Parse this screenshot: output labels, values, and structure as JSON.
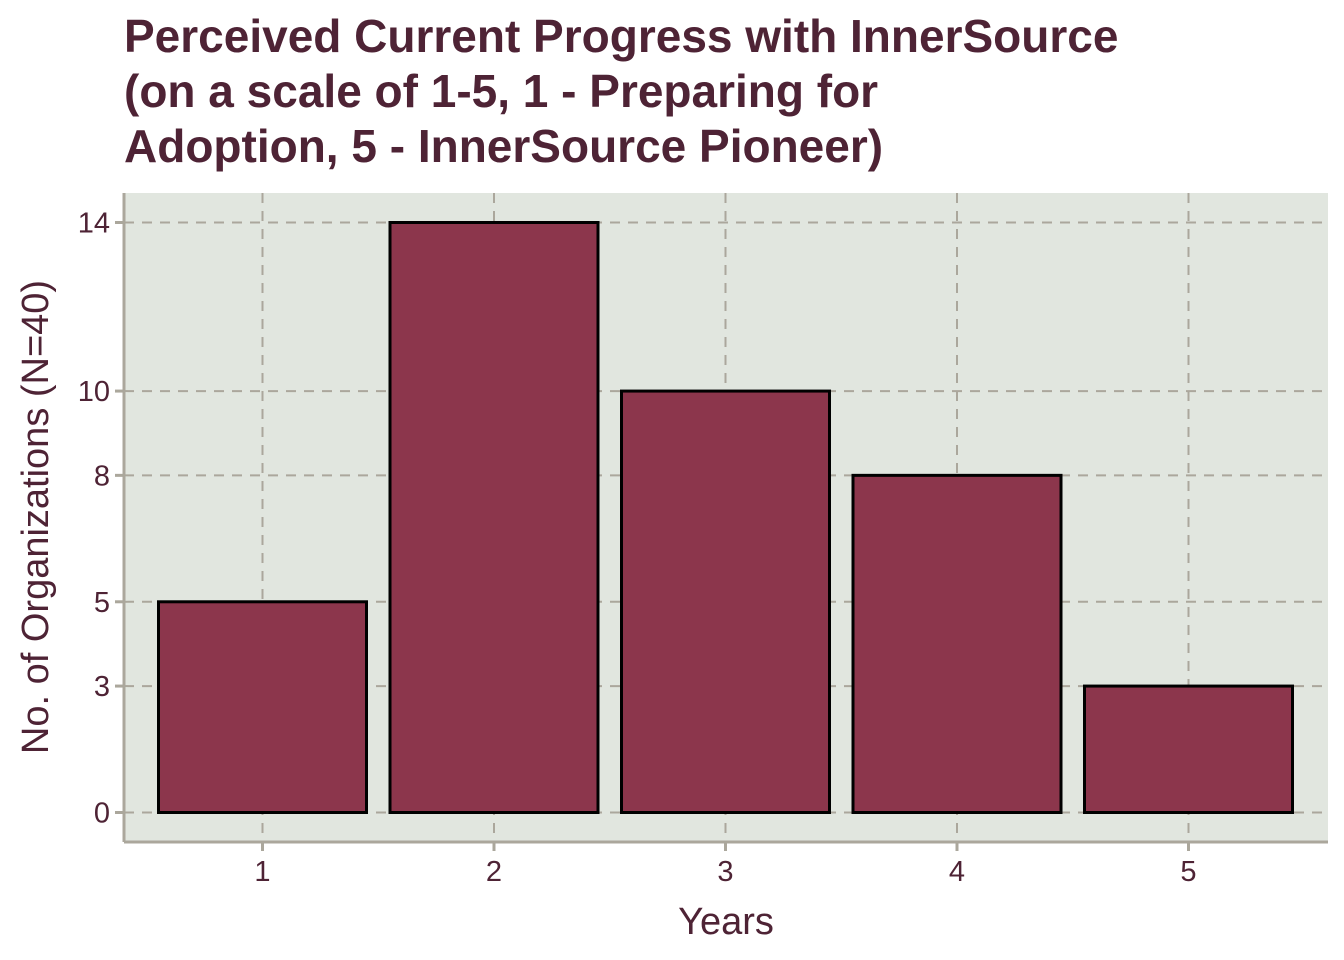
{
  "chart_data": {
    "type": "bar",
    "title_lines": [
      "Perceived Current Progress with InnerSource",
      "(on a scale of 1-5, 1 - Preparing for",
      "Adoption, 5 - InnerSource Pioneer)"
    ],
    "xlabel": "Years",
    "ylabel": "No. of Organizations (N=40)",
    "categories": [
      "1",
      "2",
      "3",
      "4",
      "5"
    ],
    "values": [
      5,
      14,
      10,
      8,
      3
    ],
    "yticks": [
      0,
      3,
      5,
      8,
      10,
      14
    ],
    "ylim": [
      -0.7,
      14.7
    ],
    "grid": true,
    "legend": "none",
    "colors": {
      "bar_fill": "#8c364c",
      "bar_stroke": "#000000",
      "panel_background": "#e1e6df",
      "grid": "#aba79c",
      "text": "#4e2335",
      "axis_line": "#aba79c"
    }
  }
}
